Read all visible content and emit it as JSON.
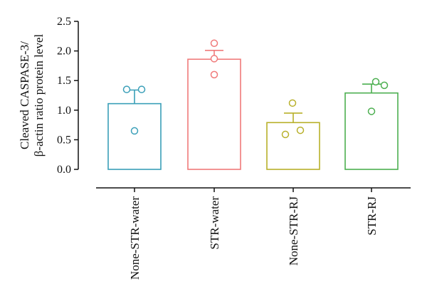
{
  "chart_data": {
    "type": "bar",
    "ylabel_lines": [
      "Cleaved CASPASE-3/",
      "β-actin ratio protein level"
    ],
    "ylim": [
      0,
      2.5
    ],
    "yticks": [
      "0.0",
      "0.5",
      "1.0",
      "1.5",
      "2.0",
      "2.5"
    ],
    "grid": false,
    "categories": [
      "None-STR-water",
      "STR-water",
      "None-STR-RJ",
      "STR-RJ"
    ],
    "values": [
      1.11,
      1.86,
      0.79,
      1.29
    ],
    "errors": [
      0.23,
      0.15,
      0.16,
      0.15
    ],
    "points": [
      [
        1.35,
        1.35,
        0.65
      ],
      [
        2.13,
        1.87,
        1.6
      ],
      [
        1.12,
        0.66,
        0.59
      ],
      [
        1.48,
        1.42,
        0.98
      ]
    ],
    "colors": [
      "#3a9fb8",
      "#f07a7a",
      "#b8b02a",
      "#4caf50"
    ]
  }
}
